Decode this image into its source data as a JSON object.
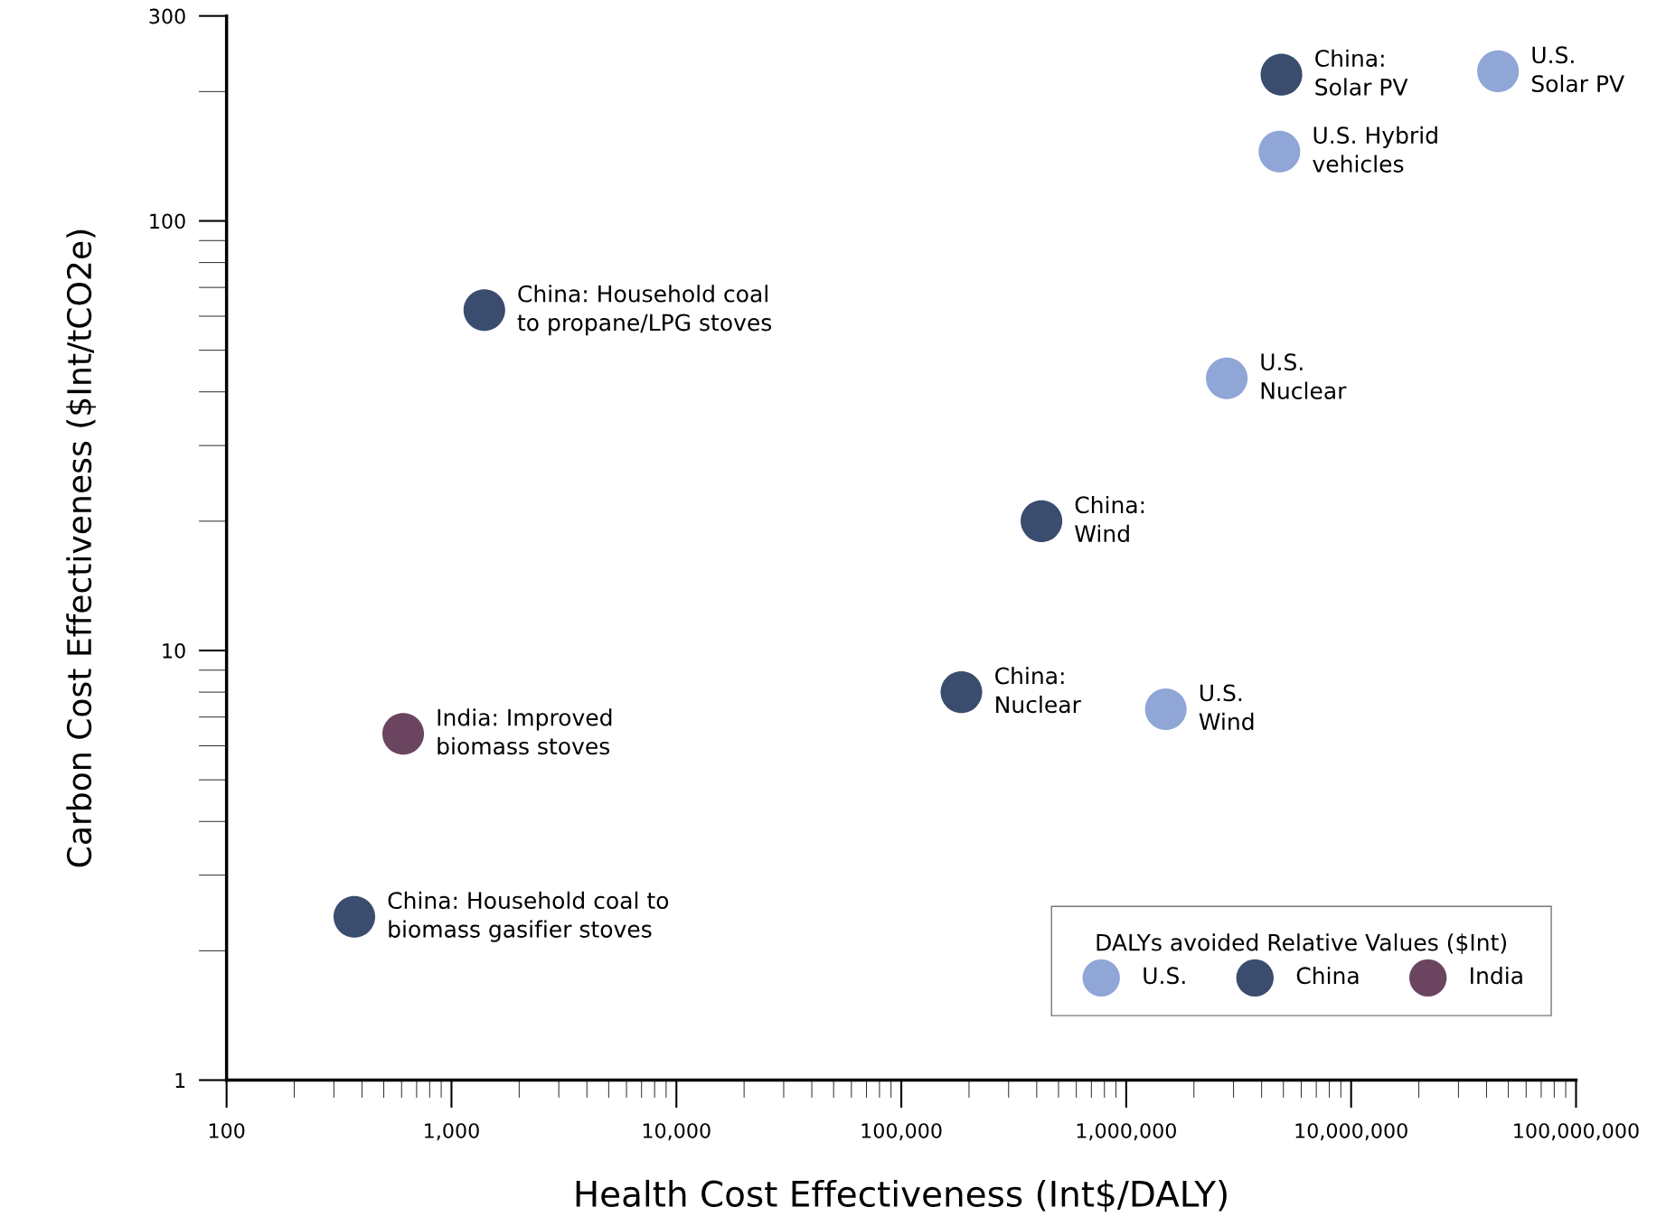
{
  "chart_data": {
    "type": "scatter",
    "xlabel": "Health Cost Effectiveness (Int$/DALY)",
    "ylabel": "Carbon Cost Effectiveness ($Int/tCO2e)",
    "legend_title": "DALYs avoided Relative Values ($Int)",
    "legend": "bottom right",
    "log": "xy",
    "grid": false,
    "marker": "circle",
    "xlim": [
      100,
      100000000
    ],
    "xticks": [
      100,
      {
        "value": 1000,
        "label": "1,000"
      },
      {
        "value": 10000,
        "label": "10,000"
      },
      {
        "value": 100000,
        "label": "100,000"
      },
      {
        "value": 1000000,
        "label": "1,000,000"
      },
      {
        "value": 10000000,
        "label": "10,000,000"
      },
      {
        "value": 100000000,
        "label": "100,000,000"
      }
    ],
    "ylim": [
      1,
      300
    ],
    "yticks": [
      1,
      10,
      100,
      300
    ],
    "series": [
      {
        "name": "U.S.",
        "color": "#8fa6d6",
        "x": [
          45000000,
          4800000,
          2800000,
          1500000
        ],
        "values": [
          223,
          145,
          43,
          7.3
        ]
      },
      {
        "name": "China",
        "color": "#3a4d6e",
        "x": [
          4900000,
          1400,
          420000,
          185000,
          370
        ],
        "values": [
          219,
          62,
          20,
          8.0,
          2.4
        ]
      },
      {
        "name": "India",
        "color": "#6b4560",
        "x": [
          610
        ],
        "values": [
          6.4
        ]
      }
    ],
    "annotations": [
      {
        "text": "China:\nSolar PV",
        "x": 4900000,
        "y": 219
      },
      {
        "text": "U.S.\nSolar PV",
        "x": 45000000,
        "y": 223
      },
      {
        "text": "U.S. Hybrid\nvehicles",
        "x": 4800000,
        "y": 145
      },
      {
        "text": "China: Household coal\nto propane/LPG stoves",
        "x": 1400,
        "y": 62
      },
      {
        "text": "U.S.\nNuclear",
        "x": 2800000,
        "y": 43
      },
      {
        "text": "China:\nWind",
        "x": 420000,
        "y": 20
      },
      {
        "text": "China:\nNuclear",
        "x": 185000,
        "y": 8.0
      },
      {
        "text": "U.S.\nWind",
        "x": 1500000,
        "y": 7.3
      },
      {
        "text": "India: Improved\nbiomass stoves",
        "x": 610,
        "y": 6.4
      },
      {
        "text": "China: Household coal to\nbiomass gasifier stoves",
        "x": 370,
        "y": 2.4
      }
    ]
  }
}
